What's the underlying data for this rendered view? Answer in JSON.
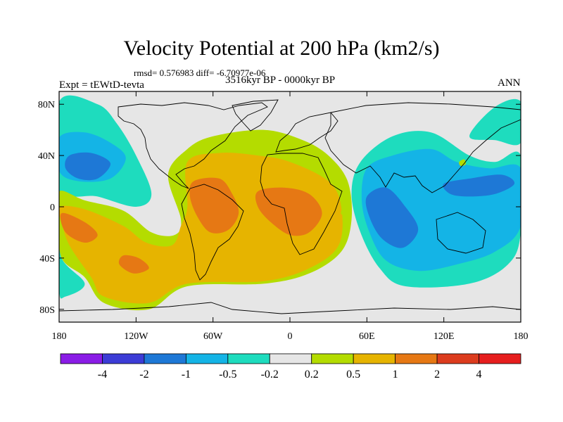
{
  "chart_data": {
    "type": "heatmap",
    "title": "Velocity Potential at 200 hPa (km2/s)",
    "stats_line": "rmsd= 0.576983 diff= -6.70977e-06",
    "experiment_label": "Expt = tEWtD-tevta",
    "period_label": "3516kyr BP - 0000kyr BP",
    "season_label": "ANN",
    "xlim": [
      -180,
      180
    ],
    "ylim": [
      -90,
      90
    ],
    "x_ticks": [
      {
        "value": -180,
        "label": "180"
      },
      {
        "value": -120,
        "label": "120W"
      },
      {
        "value": -60,
        "label": "60W"
      },
      {
        "value": 0,
        "label": "0"
      },
      {
        "value": 60,
        "label": "60E"
      },
      {
        "value": 120,
        "label": "120E"
      },
      {
        "value": 180,
        "label": "180"
      }
    ],
    "y_ticks": [
      {
        "value": 80,
        "label": "80N"
      },
      {
        "value": 40,
        "label": "40N"
      },
      {
        "value": 0,
        "label": "0"
      },
      {
        "value": -40,
        "label": "40S"
      },
      {
        "value": -80,
        "label": "80S"
      }
    ],
    "colorbar": {
      "colors": [
        "#8a1ce6",
        "#3c3cd6",
        "#1e78d6",
        "#14b4e6",
        "#1edcbe",
        "#e6e6e6",
        "#b4dc00",
        "#e6b400",
        "#e67814",
        "#dc3c1e",
        "#e61e1e"
      ],
      "labels": [
        "-4",
        "-2",
        "-1",
        "-0.5",
        "-0.2",
        "0.2",
        "0.5",
        "1",
        "2",
        "4"
      ]
    },
    "regions": [
      {
        "level": -0.2,
        "color": "#1edcbe",
        "points": [
          [
            -180,
            82
          ],
          [
            -150,
            80
          ],
          [
            -135,
            65
          ],
          [
            -120,
            40
          ],
          [
            -108,
            10
          ],
          [
            -120,
            0
          ],
          [
            -150,
            8
          ],
          [
            -180,
            15
          ]
        ]
      },
      {
        "level": -0.5,
        "color": "#14b4e6",
        "points": [
          [
            -180,
            54
          ],
          [
            -160,
            58
          ],
          [
            -140,
            50
          ],
          [
            -128,
            38
          ],
          [
            -140,
            22
          ],
          [
            -165,
            20
          ],
          [
            -180,
            28
          ]
        ]
      },
      {
        "level": -1,
        "color": "#1e78d6",
        "points": [
          [
            -172,
            40
          ],
          [
            -155,
            42
          ],
          [
            -140,
            34
          ],
          [
            -150,
            22
          ],
          [
            -165,
            22
          ],
          [
            -175,
            30
          ]
        ]
      },
      {
        "level": -0.2,
        "color": "#1edcbe",
        "points": [
          [
            -180,
            -10
          ],
          [
            -178,
            -40
          ],
          [
            -160,
            -60
          ],
          [
            -175,
            -70
          ],
          [
            -180,
            -65
          ]
        ]
      },
      {
        "level": -0.2,
        "color": "#1edcbe",
        "points": [
          [
            -180,
            18
          ],
          [
            -168,
            12
          ],
          [
            -170,
            0
          ],
          [
            -180,
            -4
          ]
        ]
      },
      {
        "level": -0.2,
        "color": "#1edcbe",
        "points": [
          [
            55,
            35
          ],
          [
            80,
            55
          ],
          [
            110,
            58
          ],
          [
            140,
            40
          ],
          [
            160,
            35
          ],
          [
            180,
            40
          ],
          [
            180,
            -20
          ],
          [
            170,
            -45
          ],
          [
            140,
            -60
          ],
          [
            90,
            -62
          ],
          [
            70,
            -48
          ],
          [
            55,
            -20
          ],
          [
            48,
            10
          ]
        ]
      },
      {
        "level": -0.2,
        "color": "#1edcbe",
        "points": [
          [
            140,
            55
          ],
          [
            160,
            78
          ],
          [
            180,
            82
          ],
          [
            180,
            50
          ],
          [
            160,
            52
          ]
        ]
      },
      {
        "level": -0.5,
        "color": "#14b4e6",
        "points": [
          [
            60,
            30
          ],
          [
            80,
            40
          ],
          [
            110,
            45
          ],
          [
            130,
            35
          ],
          [
            155,
            30
          ],
          [
            180,
            30
          ],
          [
            180,
            -15
          ],
          [
            160,
            -35
          ],
          [
            130,
            -45
          ],
          [
            100,
            -50
          ],
          [
            75,
            -42
          ],
          [
            62,
            -20
          ],
          [
            56,
            5
          ]
        ]
      },
      {
        "level": -1,
        "color": "#1e78d6",
        "points": [
          [
            60,
            8
          ],
          [
            75,
            15
          ],
          [
            90,
            0
          ],
          [
            100,
            -18
          ],
          [
            88,
            -32
          ],
          [
            72,
            -25
          ],
          [
            62,
            -8
          ]
        ]
      },
      {
        "level": -1,
        "color": "#1e78d6",
        "points": [
          [
            120,
            18
          ],
          [
            140,
            22
          ],
          [
            165,
            25
          ],
          [
            175,
            18
          ],
          [
            160,
            10
          ],
          [
            140,
            8
          ],
          [
            125,
            10
          ]
        ]
      },
      {
        "level": 0.2,
        "color": "#b4dc00",
        "points": [
          [
            -180,
            12
          ],
          [
            -160,
            5
          ],
          [
            -130,
            -3
          ],
          [
            -108,
            -20
          ],
          [
            -90,
            -22
          ],
          [
            -85,
            -10
          ],
          [
            -95,
            25
          ],
          [
            -80,
            45
          ],
          [
            -60,
            55
          ],
          [
            -20,
            60
          ],
          [
            10,
            52
          ],
          [
            30,
            40
          ],
          [
            45,
            20
          ],
          [
            48,
            -10
          ],
          [
            40,
            -35
          ],
          [
            15,
            -52
          ],
          [
            -20,
            -60
          ],
          [
            -80,
            -62
          ],
          [
            -110,
            -80
          ],
          [
            -145,
            -75
          ],
          [
            -160,
            -55
          ],
          [
            -178,
            -40
          ],
          [
            -180,
            -10
          ]
        ]
      },
      {
        "level": 0.5,
        "color": "#e6b400",
        "points": [
          [
            -180,
            0
          ],
          [
            -160,
            -2
          ],
          [
            -130,
            -15
          ],
          [
            -112,
            -28
          ],
          [
            -92,
            -30
          ],
          [
            -85,
            -15
          ],
          [
            -80,
            0
          ],
          [
            -80,
            35
          ],
          [
            -55,
            42
          ],
          [
            -25,
            40
          ],
          [
            0,
            35
          ],
          [
            30,
            20
          ],
          [
            40,
            0
          ],
          [
            38,
            -30
          ],
          [
            15,
            -48
          ],
          [
            -20,
            -58
          ],
          [
            -80,
            -60
          ],
          [
            -110,
            -75
          ],
          [
            -145,
            -70
          ],
          [
            -155,
            -55
          ],
          [
            -172,
            -30
          ],
          [
            -178,
            -12
          ]
        ]
      },
      {
        "level": 1,
        "color": "#e67814",
        "points": [
          [
            -178,
            -5
          ],
          [
            -160,
            -12
          ],
          [
            -150,
            -22
          ],
          [
            -160,
            -28
          ],
          [
            -175,
            -20
          ]
        ]
      },
      {
        "level": 1,
        "color": "#e67814",
        "points": [
          [
            -130,
            -38
          ],
          [
            -118,
            -40
          ],
          [
            -110,
            -48
          ],
          [
            -122,
            -52
          ],
          [
            -133,
            -45
          ]
        ]
      },
      {
        "level": 1,
        "color": "#e67814",
        "points": [
          [
            -75,
            20
          ],
          [
            -55,
            22
          ],
          [
            -45,
            10
          ],
          [
            -40,
            -5
          ],
          [
            -48,
            -18
          ],
          [
            -62,
            -20
          ],
          [
            -72,
            -8
          ],
          [
            -78,
            8
          ]
        ]
      },
      {
        "level": 1,
        "color": "#e67814",
        "points": [
          [
            -25,
            12
          ],
          [
            -5,
            15
          ],
          [
            15,
            10
          ],
          [
            25,
            -5
          ],
          [
            15,
            -20
          ],
          [
            0,
            -22
          ],
          [
            -15,
            -12
          ],
          [
            -25,
            0
          ]
        ]
      },
      {
        "level": 0.2,
        "color": "#b4dc00",
        "points": [
          [
            132,
            35
          ],
          [
            136,
            37
          ],
          [
            137,
            33
          ],
          [
            133,
            32
          ]
        ]
      },
      {
        "level": 0.2,
        "color": "#b4dc00",
        "points": [
          [
            40,
            -3
          ],
          [
            42,
            -2
          ],
          [
            42,
            -5
          ],
          [
            40,
            -6
          ]
        ]
      }
    ]
  }
}
